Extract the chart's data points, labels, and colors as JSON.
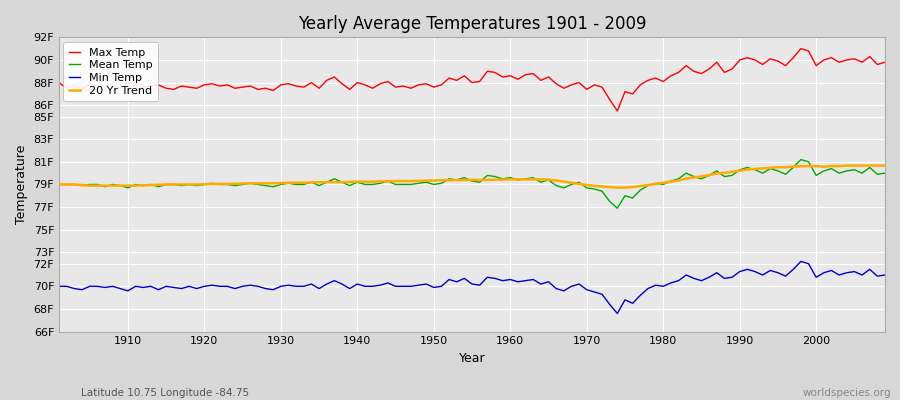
{
  "title": "Yearly Average Temperatures 1901 - 2009",
  "xlabel": "Year",
  "ylabel": "Temperature",
  "subtitle_lat_lon": "Latitude 10.75 Longitude -84.75",
  "watermark": "worldspecies.org",
  "years": [
    1901,
    1902,
    1903,
    1904,
    1905,
    1906,
    1907,
    1908,
    1909,
    1910,
    1911,
    1912,
    1913,
    1914,
    1915,
    1916,
    1917,
    1918,
    1919,
    1920,
    1921,
    1922,
    1923,
    1924,
    1925,
    1926,
    1927,
    1928,
    1929,
    1930,
    1931,
    1932,
    1933,
    1934,
    1935,
    1936,
    1937,
    1938,
    1939,
    1940,
    1941,
    1942,
    1943,
    1944,
    1945,
    1946,
    1947,
    1948,
    1949,
    1950,
    1951,
    1952,
    1953,
    1954,
    1955,
    1956,
    1957,
    1958,
    1959,
    1960,
    1961,
    1962,
    1963,
    1964,
    1965,
    1966,
    1967,
    1968,
    1969,
    1970,
    1971,
    1972,
    1973,
    1974,
    1975,
    1976,
    1977,
    1978,
    1979,
    1980,
    1981,
    1982,
    1983,
    1984,
    1985,
    1986,
    1987,
    1988,
    1989,
    1990,
    1991,
    1992,
    1993,
    1994,
    1995,
    1996,
    1997,
    1998,
    1999,
    2000,
    2001,
    2002,
    2003,
    2004,
    2005,
    2006,
    2007,
    2008,
    2009
  ],
  "max_temp": [
    88.0,
    87.5,
    87.8,
    87.4,
    87.9,
    87.6,
    87.7,
    87.8,
    87.5,
    87.9,
    88.0,
    87.6,
    87.7,
    87.8,
    87.5,
    87.4,
    87.7,
    87.6,
    87.5,
    87.8,
    87.9,
    87.7,
    87.8,
    87.5,
    87.6,
    87.7,
    87.4,
    87.5,
    87.3,
    87.8,
    87.9,
    87.7,
    87.6,
    88.0,
    87.5,
    88.2,
    88.5,
    87.9,
    87.4,
    88.0,
    87.8,
    87.5,
    87.9,
    88.1,
    87.6,
    87.7,
    87.5,
    87.8,
    87.9,
    87.6,
    87.8,
    88.4,
    88.2,
    88.6,
    88.0,
    88.1,
    89.0,
    88.9,
    88.5,
    88.6,
    88.3,
    88.7,
    88.8,
    88.2,
    88.5,
    87.9,
    87.5,
    87.8,
    88.0,
    87.4,
    87.8,
    87.6,
    86.5,
    85.5,
    87.2,
    87.0,
    87.8,
    88.2,
    88.4,
    88.1,
    88.6,
    88.9,
    89.5,
    89.0,
    88.8,
    89.2,
    89.8,
    88.9,
    89.2,
    90.0,
    90.2,
    90.0,
    89.6,
    90.1,
    89.9,
    89.5,
    90.2,
    91.0,
    90.8,
    89.5,
    90.0,
    90.2,
    89.8,
    90.0,
    90.1,
    89.8,
    90.3,
    89.6,
    89.8
  ],
  "mean_temp": [
    79.0,
    79.0,
    79.0,
    78.9,
    79.0,
    79.0,
    78.8,
    79.0,
    78.9,
    78.7,
    79.0,
    78.9,
    79.0,
    78.8,
    79.0,
    79.0,
    78.9,
    79.0,
    78.9,
    79.0,
    79.1,
    79.0,
    79.0,
    78.9,
    79.0,
    79.1,
    79.0,
    78.9,
    78.8,
    79.0,
    79.1,
    79.0,
    79.0,
    79.2,
    78.9,
    79.2,
    79.5,
    79.2,
    78.9,
    79.2,
    79.0,
    79.0,
    79.1,
    79.3,
    79.0,
    79.0,
    79.0,
    79.1,
    79.2,
    79.0,
    79.1,
    79.5,
    79.4,
    79.6,
    79.3,
    79.2,
    79.8,
    79.7,
    79.5,
    79.6,
    79.4,
    79.5,
    79.6,
    79.2,
    79.4,
    78.9,
    78.7,
    79.0,
    79.2,
    78.7,
    78.6,
    78.4,
    77.5,
    76.9,
    78.0,
    77.8,
    78.5,
    78.9,
    79.1,
    79.0,
    79.3,
    79.5,
    80.0,
    79.7,
    79.5,
    79.8,
    80.2,
    79.7,
    79.8,
    80.3,
    80.5,
    80.3,
    80.0,
    80.4,
    80.2,
    79.9,
    80.5,
    81.2,
    81.0,
    79.8,
    80.2,
    80.4,
    80.0,
    80.2,
    80.3,
    80.0,
    80.5,
    79.9,
    80.0
  ],
  "min_temp": [
    70.0,
    70.0,
    69.8,
    69.7,
    70.0,
    70.0,
    69.9,
    70.0,
    69.8,
    69.6,
    70.0,
    69.9,
    70.0,
    69.7,
    70.0,
    69.9,
    69.8,
    70.0,
    69.8,
    70.0,
    70.1,
    70.0,
    70.0,
    69.8,
    70.0,
    70.1,
    70.0,
    69.8,
    69.7,
    70.0,
    70.1,
    70.0,
    70.0,
    70.2,
    69.8,
    70.2,
    70.5,
    70.2,
    69.8,
    70.2,
    70.0,
    70.0,
    70.1,
    70.3,
    70.0,
    70.0,
    70.0,
    70.1,
    70.2,
    69.9,
    70.0,
    70.6,
    70.4,
    70.7,
    70.2,
    70.1,
    70.8,
    70.7,
    70.5,
    70.6,
    70.4,
    70.5,
    70.6,
    70.2,
    70.4,
    69.8,
    69.6,
    70.0,
    70.2,
    69.7,
    69.5,
    69.3,
    68.4,
    67.6,
    68.8,
    68.5,
    69.2,
    69.8,
    70.1,
    70.0,
    70.3,
    70.5,
    71.0,
    70.7,
    70.5,
    70.8,
    71.2,
    70.7,
    70.8,
    71.3,
    71.5,
    71.3,
    71.0,
    71.4,
    71.2,
    70.9,
    71.5,
    72.2,
    72.0,
    70.8,
    71.2,
    71.4,
    71.0,
    71.2,
    71.3,
    71.0,
    71.5,
    70.9,
    71.0
  ],
  "trend_20yr": [
    79.0,
    79.0,
    79.0,
    78.95,
    78.9,
    78.9,
    78.9,
    78.9,
    78.9,
    78.9,
    78.9,
    78.92,
    78.95,
    78.97,
    79.0,
    79.0,
    79.0,
    79.0,
    79.0,
    79.02,
    79.05,
    79.05,
    79.05,
    79.05,
    79.08,
    79.1,
    79.1,
    79.1,
    79.1,
    79.12,
    79.15,
    79.15,
    79.15,
    79.18,
    79.2,
    79.2,
    79.2,
    79.2,
    79.22,
    79.25,
    79.25,
    79.25,
    79.27,
    79.28,
    79.3,
    79.3,
    79.3,
    79.32,
    79.33,
    79.35,
    79.37,
    79.38,
    79.38,
    79.39,
    79.4,
    79.4,
    79.4,
    79.42,
    79.43,
    79.45,
    79.45,
    79.45,
    79.45,
    79.45,
    79.43,
    79.35,
    79.25,
    79.15,
    79.05,
    78.95,
    78.88,
    78.82,
    78.77,
    78.72,
    78.72,
    78.78,
    78.85,
    78.95,
    79.05,
    79.15,
    79.25,
    79.35,
    79.52,
    79.62,
    79.72,
    79.82,
    79.97,
    80.02,
    80.12,
    80.22,
    80.32,
    80.37,
    80.42,
    80.47,
    80.52,
    80.52,
    80.57,
    80.62,
    80.62,
    80.62,
    80.57,
    80.62,
    80.62,
    80.67,
    80.67,
    80.67,
    80.67,
    80.67,
    80.67
  ],
  "ylim": [
    66,
    92
  ],
  "yticks": [
    66,
    68,
    70,
    72,
    73,
    75,
    77,
    79,
    81,
    83,
    85,
    86,
    88,
    90,
    92
  ],
  "ytick_labels": [
    "66F",
    "68F",
    "70F",
    "72F",
    "73F",
    "75F",
    "77F",
    "79F",
    "81F",
    "83F",
    "85F",
    "86F",
    "88F",
    "90F",
    "92F"
  ],
  "xlim": [
    1901,
    2009
  ],
  "xticks": [
    1910,
    1920,
    1930,
    1940,
    1950,
    1960,
    1970,
    1980,
    1990,
    2000
  ],
  "max_color": "#ff0000",
  "mean_color": "#00aa00",
  "min_color": "#0000cc",
  "trend_color": "#ffaa00",
  "bg_color": "#d8d8d8",
  "plot_bg_color": "#e8e8e8",
  "grid_color": "#ffffff",
  "legend_loc": "upper left"
}
